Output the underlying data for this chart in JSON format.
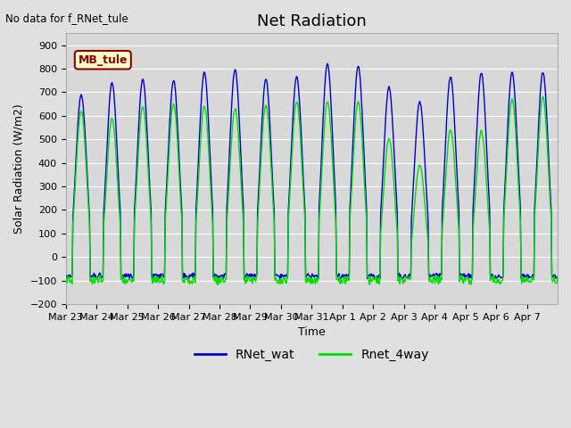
{
  "title": "Net Radiation",
  "ylabel": "Solar Radiation (W/m2)",
  "xlabel": "Time",
  "no_data_text": "No data for f_RNet_tule",
  "mb_tule_label": "MB_tule",
  "legend_entries": [
    "RNet_wat",
    "Rnet_4way"
  ],
  "ylim": [
    -200,
    950
  ],
  "yticks": [
    -200,
    -100,
    0,
    100,
    200,
    300,
    400,
    500,
    600,
    700,
    800,
    900
  ],
  "xtick_labels": [
    "Mar 23",
    "Mar 24",
    "Mar 25",
    "Mar 26",
    "Mar 27",
    "Mar 28",
    "Mar 29",
    "Mar 30",
    "Mar 31",
    "Apr 1",
    "Apr 2",
    "Apr 3",
    "Apr 4",
    "Apr 5",
    "Apr 6",
    "Apr 7"
  ],
  "n_days": 16,
  "background_color": "#e0e0e0",
  "plot_bg_color": "#d8d8d8",
  "grid_color": "#ffffff",
  "blue_color": "#0000cc",
  "green_color": "#00dd00",
  "title_fontsize": 13,
  "label_fontsize": 9,
  "tick_fontsize": 8,
  "blue_peaks": [
    690,
    740,
    755,
    750,
    785,
    795,
    755,
    765,
    820,
    810,
    720,
    660,
    765,
    780,
    785,
    785
  ],
  "green_peaks": [
    620,
    590,
    640,
    650,
    640,
    630,
    645,
    660,
    660,
    660,
    505,
    390,
    540,
    535,
    670,
    680
  ]
}
